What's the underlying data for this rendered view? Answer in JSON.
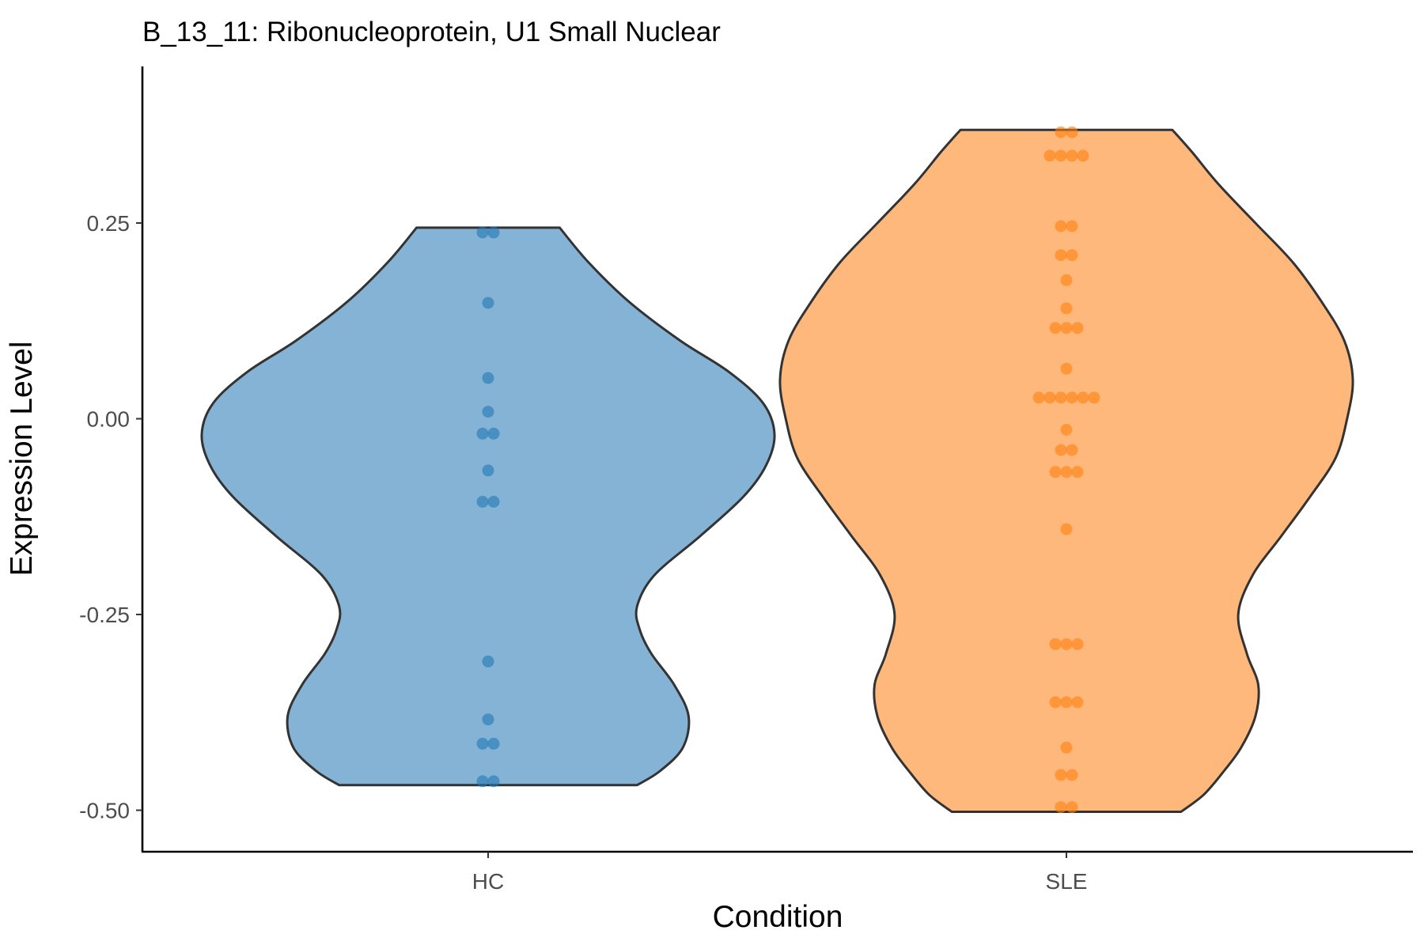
{
  "chart_data": {
    "type": "violin",
    "title": "B_13_11: Ribonucleoprotein, U1 Small Nuclear",
    "xlabel": "Condition",
    "ylabel": "Expression Level",
    "categories": [
      "HC",
      "SLE"
    ],
    "ylim": [
      -0.553,
      0.45
    ],
    "yticks": [
      -0.5,
      -0.25,
      0.0,
      0.25
    ],
    "ytick_labels": [
      "-0.50",
      "-0.25",
      "0.00",
      "0.25"
    ],
    "grid": false,
    "legend": "none",
    "series": [
      {
        "name": "HC",
        "color": "#1f77b4",
        "fill": "#85b3d6",
        "range": [
          -0.468,
          0.244
        ],
        "density": [
          [
            -0.468,
            0.52
          ],
          [
            -0.45,
            0.6
          ],
          [
            -0.42,
            0.68
          ],
          [
            -0.38,
            0.7
          ],
          [
            -0.34,
            0.65
          ],
          [
            -0.3,
            0.57
          ],
          [
            -0.27,
            0.53
          ],
          [
            -0.24,
            0.52
          ],
          [
            -0.2,
            0.58
          ],
          [
            -0.15,
            0.74
          ],
          [
            -0.1,
            0.89
          ],
          [
            -0.06,
            0.97
          ],
          [
            -0.02,
            1.0
          ],
          [
            0.02,
            0.96
          ],
          [
            0.06,
            0.84
          ],
          [
            0.1,
            0.67
          ],
          [
            0.15,
            0.49
          ],
          [
            0.2,
            0.35
          ],
          [
            0.244,
            0.25
          ]
        ],
        "points": [
          0.238,
          0.238,
          0.148,
          0.052,
          0.009,
          -0.019,
          -0.019,
          -0.066,
          -0.106,
          -0.106,
          -0.31,
          -0.384,
          -0.415,
          -0.415,
          -0.463,
          -0.463
        ]
      },
      {
        "name": "SLE",
        "color": "#ff7f0e",
        "fill": "#ffb87c",
        "range": [
          -0.502,
          0.369
        ],
        "density": [
          [
            -0.502,
            0.4
          ],
          [
            -0.48,
            0.48
          ],
          [
            -0.45,
            0.55
          ],
          [
            -0.42,
            0.61
          ],
          [
            -0.38,
            0.66
          ],
          [
            -0.34,
            0.67
          ],
          [
            -0.3,
            0.63
          ],
          [
            -0.25,
            0.6
          ],
          [
            -0.2,
            0.65
          ],
          [
            -0.15,
            0.75
          ],
          [
            -0.1,
            0.85
          ],
          [
            -0.05,
            0.94
          ],
          [
            0.0,
            0.98
          ],
          [
            0.05,
            1.0
          ],
          [
            0.1,
            0.97
          ],
          [
            0.15,
            0.89
          ],
          [
            0.2,
            0.79
          ],
          [
            0.25,
            0.66
          ],
          [
            0.3,
            0.53
          ],
          [
            0.34,
            0.44
          ],
          [
            0.369,
            0.37
          ]
        ],
        "points": [
          0.366,
          0.366,
          0.336,
          0.336,
          0.336,
          0.336,
          0.246,
          0.246,
          0.209,
          0.209,
          0.177,
          0.141,
          0.116,
          0.116,
          0.116,
          0.064,
          0.027,
          0.027,
          0.027,
          0.027,
          0.027,
          0.027,
          -0.014,
          -0.04,
          -0.04,
          -0.068,
          -0.068,
          -0.068,
          -0.141,
          -0.288,
          -0.288,
          -0.288,
          -0.362,
          -0.362,
          -0.362,
          -0.42,
          -0.455,
          -0.455,
          -0.496,
          -0.496
        ]
      }
    ]
  }
}
